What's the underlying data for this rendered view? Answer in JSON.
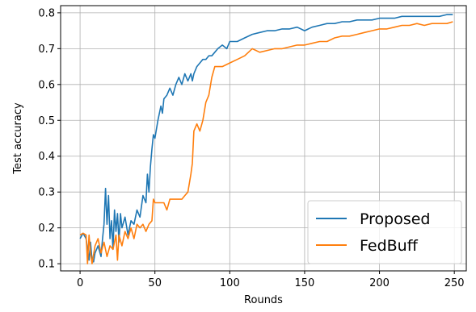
{
  "chart_data": {
    "type": "line",
    "title": "",
    "xlabel": "Rounds",
    "ylabel": "Test accuracy",
    "xlim": [
      -13,
      258
    ],
    "ylim": [
      0.08,
      0.82
    ],
    "xticks": [
      0,
      50,
      100,
      150,
      200,
      250
    ],
    "yticks": [
      0.1,
      0.2,
      0.3,
      0.4,
      0.5,
      0.6,
      0.7,
      0.8
    ],
    "grid": true,
    "legend_position": "lower-right",
    "series": [
      {
        "name": "Proposed",
        "color": "#1f77b4",
        "x": [
          0,
          2,
          4,
          6,
          7,
          8,
          9,
          10,
          12,
          14,
          15,
          16,
          17,
          18,
          19,
          20,
          21,
          22,
          23,
          24,
          25,
          26,
          27,
          28,
          30,
          32,
          34,
          36,
          38,
          40,
          42,
          44,
          45,
          46,
          47,
          48,
          49,
          50,
          52,
          54,
          55,
          56,
          58,
          60,
          62,
          64,
          66,
          68,
          70,
          72,
          74,
          75,
          76,
          78,
          80,
          82,
          84,
          86,
          88,
          90,
          92,
          95,
          98,
          100,
          105,
          110,
          115,
          120,
          125,
          130,
          135,
          140,
          145,
          150,
          155,
          160,
          165,
          170,
          175,
          180,
          185,
          190,
          195,
          200,
          205,
          210,
          215,
          220,
          225,
          230,
          235,
          240,
          245,
          249
        ],
        "y": [
          0.17,
          0.185,
          0.17,
          0.11,
          0.16,
          0.11,
          0.105,
          0.13,
          0.15,
          0.12,
          0.17,
          0.21,
          0.31,
          0.21,
          0.29,
          0.17,
          0.22,
          0.14,
          0.25,
          0.19,
          0.24,
          0.16,
          0.24,
          0.2,
          0.23,
          0.18,
          0.22,
          0.21,
          0.25,
          0.23,
          0.29,
          0.27,
          0.35,
          0.3,
          0.37,
          0.42,
          0.46,
          0.45,
          0.5,
          0.54,
          0.52,
          0.56,
          0.57,
          0.59,
          0.57,
          0.6,
          0.62,
          0.6,
          0.63,
          0.61,
          0.63,
          0.61,
          0.63,
          0.65,
          0.66,
          0.67,
          0.67,
          0.68,
          0.68,
          0.69,
          0.7,
          0.71,
          0.7,
          0.72,
          0.72,
          0.73,
          0.74,
          0.745,
          0.75,
          0.75,
          0.755,
          0.755,
          0.76,
          0.75,
          0.76,
          0.765,
          0.77,
          0.77,
          0.775,
          0.775,
          0.78,
          0.78,
          0.78,
          0.785,
          0.785,
          0.785,
          0.79,
          0.79,
          0.79,
          0.79,
          0.79,
          0.79,
          0.795,
          0.795
        ]
      },
      {
        "name": "FedBuff",
        "color": "#ff7f0e",
        "x": [
          0,
          2,
          4,
          5,
          6,
          7,
          8,
          10,
          12,
          14,
          16,
          18,
          20,
          22,
          24,
          25,
          26,
          28,
          30,
          32,
          34,
          36,
          38,
          40,
          42,
          44,
          46,
          48,
          49,
          50,
          52,
          54,
          56,
          58,
          60,
          62,
          64,
          66,
          68,
          70,
          72,
          74,
          75,
          76,
          78,
          80,
          82,
          84,
          86,
          88,
          90,
          95,
          100,
          105,
          110,
          115,
          120,
          125,
          130,
          135,
          140,
          145,
          150,
          155,
          160,
          165,
          170,
          175,
          180,
          185,
          190,
          195,
          200,
          205,
          210,
          215,
          220,
          225,
          230,
          235,
          240,
          245,
          249
        ],
        "y": [
          0.18,
          0.185,
          0.18,
          0.1,
          0.18,
          0.13,
          0.1,
          0.15,
          0.17,
          0.13,
          0.16,
          0.12,
          0.15,
          0.14,
          0.18,
          0.11,
          0.18,
          0.15,
          0.19,
          0.17,
          0.2,
          0.17,
          0.21,
          0.2,
          0.21,
          0.19,
          0.21,
          0.22,
          0.28,
          0.27,
          0.27,
          0.27,
          0.27,
          0.25,
          0.28,
          0.28,
          0.28,
          0.28,
          0.28,
          0.29,
          0.3,
          0.35,
          0.38,
          0.47,
          0.49,
          0.47,
          0.5,
          0.55,
          0.57,
          0.62,
          0.65,
          0.65,
          0.66,
          0.67,
          0.68,
          0.7,
          0.69,
          0.695,
          0.7,
          0.7,
          0.705,
          0.71,
          0.71,
          0.715,
          0.72,
          0.72,
          0.73,
          0.735,
          0.735,
          0.74,
          0.745,
          0.75,
          0.755,
          0.755,
          0.76,
          0.765,
          0.765,
          0.77,
          0.765,
          0.77,
          0.77,
          0.77,
          0.775
        ]
      }
    ]
  }
}
